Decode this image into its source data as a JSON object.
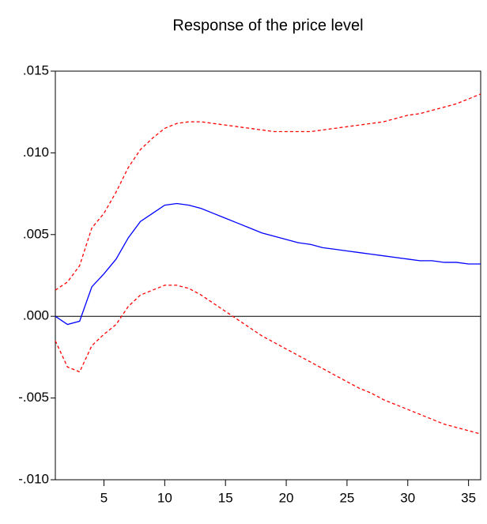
{
  "chart_data": {
    "type": "line",
    "title": "Response of the price level",
    "x": [
      1,
      2,
      3,
      4,
      5,
      6,
      7,
      8,
      9,
      10,
      11,
      12,
      13,
      14,
      15,
      16,
      17,
      18,
      19,
      20,
      21,
      22,
      23,
      24,
      25,
      26,
      27,
      28,
      29,
      30,
      31,
      32,
      33,
      34,
      35,
      36
    ],
    "series": [
      {
        "color": "#ff0000",
        "dashed": true,
        "values": [
          0.0016,
          0.0021,
          0.0031,
          0.0054,
          0.0063,
          0.0076,
          0.0091,
          0.0102,
          0.0109,
          0.0115,
          0.0118,
          0.0119,
          0.0119,
          0.0118,
          0.0117,
          0.0116,
          0.0115,
          0.0114,
          0.0113,
          0.0113,
          0.0113,
          0.0113,
          0.0114,
          0.0115,
          0.0116,
          0.0117,
          0.0118,
          0.0119,
          0.0121,
          0.0123,
          0.0124,
          0.0126,
          0.0128,
          0.013,
          0.0133,
          0.0136
        ]
      },
      {
        "color": "#0000ff",
        "dashed": false,
        "values": [
          0,
          -0.0005,
          -0.0003,
          0.0018,
          0.0026,
          0.0035,
          0.0048,
          0.0058,
          0.0063,
          0.0068,
          0.0069,
          0.0068,
          0.0066,
          0.0063,
          0.006,
          0.0057,
          0.0054,
          0.0051,
          0.0049,
          0.0047,
          0.0045,
          0.0044,
          0.0042,
          0.0041,
          0.004,
          0.0039,
          0.0038,
          0.0037,
          0.0036,
          0.0035,
          0.0034,
          0.0034,
          0.0033,
          0.0033,
          0.0032,
          0.0032
        ]
      },
      {
        "color": "#ff0000",
        "dashed": true,
        "values": [
          -0.0015,
          -0.0031,
          -0.0034,
          -0.0018,
          -0.0011,
          -0.0005,
          0.0006,
          0.0013,
          0.0016,
          0.0019,
          0.0019,
          0.0017,
          0.0013,
          0.0008,
          0.0003,
          -0.0002,
          -0.0007,
          -0.0012,
          -0.0016,
          -0.002,
          -0.0024,
          -0.0028,
          -0.0032,
          -0.0036,
          -0.004,
          -0.0044,
          -0.0047,
          -0.0051,
          -0.0054,
          -0.0057,
          -0.006,
          -0.0063,
          -0.0066,
          -0.0068,
          -0.007,
          -0.0072
        ]
      }
    ],
    "xlim": [
      1,
      36
    ],
    "xticks": [
      5,
      10,
      15,
      20,
      25,
      30,
      35
    ],
    "ylim": [
      -0.01,
      0.015
    ],
    "yticks": [
      {
        "value": -0.01,
        "label": "-.010"
      },
      {
        "value": -0.005,
        "label": "-.005"
      },
      {
        "value": 0,
        "label": ".000"
      },
      {
        "value": 0.005,
        "label": ".005"
      },
      {
        "value": 0.01,
        "label": ".010"
      },
      {
        "value": 0.015,
        "label": ".015"
      }
    ]
  }
}
